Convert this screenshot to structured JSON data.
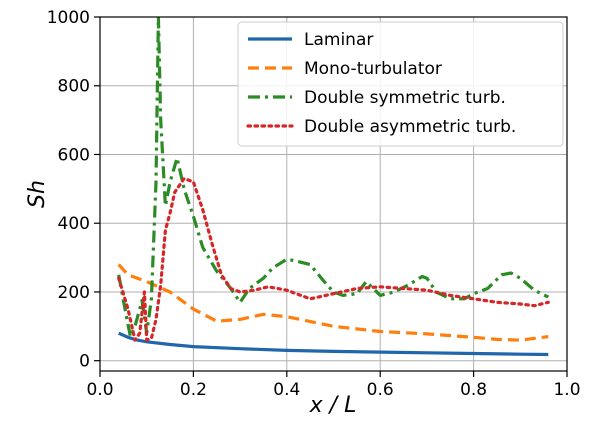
{
  "chart_data": {
    "type": "line",
    "title": "",
    "xlabel": "x / L",
    "ylabel": "Sh",
    "xlim": [
      0.0,
      1.0
    ],
    "ylim": [
      -30,
      1000
    ],
    "xticks": [
      0.0,
      0.2,
      0.4,
      0.6,
      0.8,
      1.0
    ],
    "xtick_labels": [
      "0.0",
      "0.2",
      "0.4",
      "0.6",
      "0.8",
      "1.0"
    ],
    "yticks": [
      0,
      200,
      400,
      600,
      800,
      1000
    ],
    "ytick_labels": [
      "0",
      "200",
      "400",
      "600",
      "800",
      "1000"
    ],
    "grid": true,
    "legend_position": "top-right",
    "series": [
      {
        "name": "Laminar",
        "color": "#1f66ad",
        "style": "solid",
        "x": [
          0.04,
          0.06,
          0.08,
          0.1,
          0.15,
          0.2,
          0.3,
          0.4,
          0.5,
          0.6,
          0.7,
          0.8,
          0.9,
          0.96
        ],
        "y": [
          80,
          68,
          60,
          55,
          47,
          41,
          35,
          30,
          27,
          25,
          23,
          21,
          19,
          18
        ]
      },
      {
        "name": "Mono-turbulator",
        "color": "#ff7f0e",
        "style": "dashed",
        "x": [
          0.04,
          0.06,
          0.1,
          0.15,
          0.2,
          0.25,
          0.3,
          0.35,
          0.4,
          0.5,
          0.6,
          0.7,
          0.8,
          0.85,
          0.9,
          0.96
        ],
        "y": [
          280,
          250,
          230,
          200,
          150,
          115,
          120,
          135,
          128,
          100,
          85,
          78,
          68,
          62,
          60,
          70
        ]
      },
      {
        "name": "Double symmetric turb.",
        "color": "#2b8b24",
        "style": "dashdot",
        "x": [
          0.04,
          0.055,
          0.065,
          0.075,
          0.09,
          0.1,
          0.11,
          0.12,
          0.125,
          0.13,
          0.14,
          0.15,
          0.165,
          0.18,
          0.19,
          0.2,
          0.22,
          0.25,
          0.28,
          0.3,
          0.32,
          0.35,
          0.37,
          0.4,
          0.42,
          0.45,
          0.48,
          0.5,
          0.52,
          0.55,
          0.57,
          0.6,
          0.63,
          0.66,
          0.69,
          0.7,
          0.72,
          0.75,
          0.78,
          0.8,
          0.83,
          0.86,
          0.88,
          0.9,
          0.93,
          0.96
        ],
        "y": [
          250,
          140,
          70,
          100,
          175,
          80,
          180,
          520,
          1000,
          700,
          450,
          520,
          590,
          500,
          460,
          420,
          330,
          260,
          210,
          170,
          210,
          240,
          270,
          295,
          290,
          280,
          230,
          200,
          190,
          195,
          230,
          190,
          200,
          220,
          245,
          240,
          200,
          180,
          180,
          195,
          210,
          250,
          255,
          240,
          205,
          185
        ]
      },
      {
        "name": "Double asymmetric turb.",
        "color": "#d62728",
        "style": "dotted",
        "x": [
          0.04,
          0.06,
          0.075,
          0.085,
          0.095,
          0.1,
          0.11,
          0.12,
          0.13,
          0.14,
          0.15,
          0.16,
          0.18,
          0.2,
          0.22,
          0.24,
          0.26,
          0.28,
          0.3,
          0.33,
          0.36,
          0.4,
          0.45,
          0.5,
          0.55,
          0.6,
          0.65,
          0.7,
          0.75,
          0.8,
          0.85,
          0.9,
          0.93,
          0.96
        ],
        "y": [
          240,
          150,
          60,
          80,
          200,
          60,
          65,
          120,
          220,
          380,
          430,
          490,
          530,
          520,
          440,
          340,
          250,
          210,
          200,
          205,
          215,
          205,
          180,
          195,
          210,
          215,
          210,
          205,
          190,
          180,
          170,
          165,
          160,
          170
        ]
      }
    ]
  }
}
